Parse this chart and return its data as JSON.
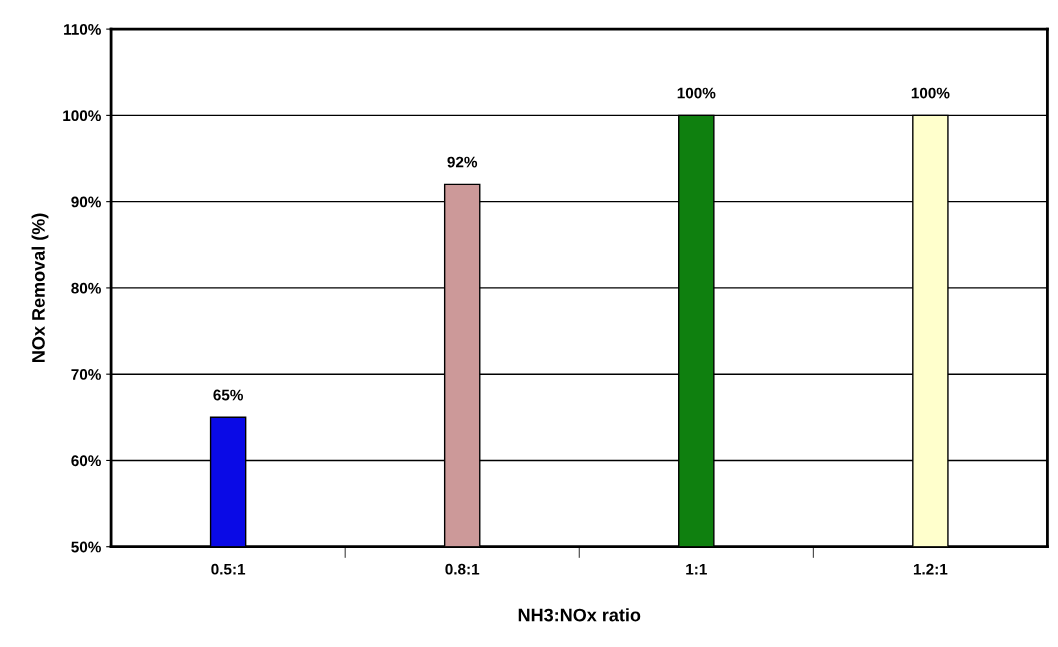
{
  "chart_data": {
    "type": "bar",
    "xlabel": "NH3:NOx ratio",
    "ylabel": "NOx Removal (%)",
    "categories": [
      "0.5:1",
      "0.8:1",
      "1:1",
      "1.2:1"
    ],
    "values": [
      65,
      92,
      100,
      100
    ],
    "colors": [
      "#0a0ae6",
      "#cc9999",
      "#0f800f",
      "#ffffcc"
    ],
    "value_labels": [
      "65%",
      "92%",
      "100%",
      "100%"
    ],
    "ylim": [
      50,
      110
    ],
    "yticks": [
      {
        "value": 50,
        "label": "50%"
      },
      {
        "value": 60,
        "label": "60%"
      },
      {
        "value": 70,
        "label": "70%"
      },
      {
        "value": 80,
        "label": "80%"
      },
      {
        "value": 90,
        "label": "90%"
      },
      {
        "value": 100,
        "label": "100%"
      },
      {
        "value": 110,
        "label": "110%"
      }
    ],
    "grid": "y"
  }
}
